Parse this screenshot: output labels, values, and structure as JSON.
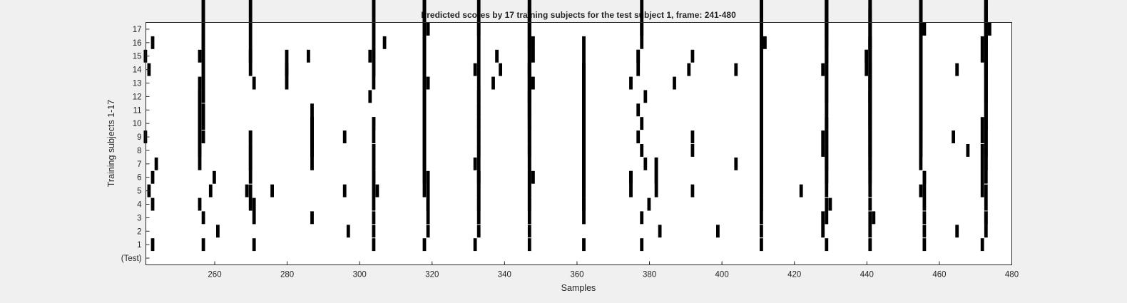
{
  "chart_data": {
    "type": "event raster",
    "title": "Predicted scores by 17 training subjects for the test subject 1, frame: 241-480",
    "xlabel": "Samples",
    "ylabel": "Training subjects 1-17",
    "xlim": [
      241,
      480
    ],
    "x_ticks": [
      "260",
      "280",
      "300",
      "320",
      "340",
      "360",
      "380",
      "400",
      "420",
      "440",
      "460",
      "480"
    ],
    "y_tick_labels": [
      "(Test)",
      "1",
      "2",
      "3",
      "4",
      "5",
      "6",
      "7",
      "8",
      "9",
      "10",
      "11",
      "12",
      "13",
      "14",
      "15",
      "16",
      "17"
    ],
    "marker_color": "#000000",
    "background": "#ffffff",
    "figure_background": "#f0f0f0",
    "grid": false,
    "rows": [
      {
        "label": "1",
        "events": [
          [
            243,
            1
          ],
          [
            257,
            1
          ],
          [
            271,
            1
          ],
          [
            304,
            1
          ],
          [
            318,
            1
          ],
          [
            332,
            1
          ],
          [
            347,
            1
          ],
          [
            362,
            1
          ],
          [
            378,
            1
          ],
          [
            411,
            1
          ],
          [
            429,
            1
          ],
          [
            441,
            1
          ],
          [
            456,
            1
          ],
          [
            472,
            1
          ]
        ]
      },
      {
        "label": "2",
        "events": [
          [
            261,
            1
          ],
          [
            297,
            1
          ],
          [
            304,
            1
          ],
          [
            319,
            1
          ],
          [
            333,
            1
          ],
          [
            347,
            1
          ],
          [
            383,
            1
          ],
          [
            399,
            1
          ],
          [
            411,
            1
          ],
          [
            428,
            2
          ],
          [
            441,
            2
          ],
          [
            456,
            1
          ],
          [
            465,
            1
          ],
          [
            473,
            2
          ]
        ]
      },
      {
        "label": "3",
        "events": [
          [
            257,
            1
          ],
          [
            271,
            2
          ],
          [
            287,
            1
          ],
          [
            304,
            1
          ],
          [
            319,
            2
          ],
          [
            333,
            2
          ],
          [
            347,
            2
          ],
          [
            362,
            2
          ],
          [
            378,
            1
          ],
          [
            411,
            2
          ],
          [
            429,
            2
          ],
          [
            442,
            1
          ],
          [
            456,
            1
          ],
          [
            473,
            1
          ]
        ]
      },
      {
        "label": "4",
        "events": [
          [
            243,
            1
          ],
          [
            256,
            1
          ],
          [
            270,
            2
          ],
          [
            304,
            3
          ],
          [
            319,
            3
          ],
          [
            333,
            3
          ],
          [
            347,
            3
          ],
          [
            362,
            3
          ],
          [
            380,
            1
          ],
          [
            411,
            3
          ],
          [
            430,
            1
          ],
          [
            441,
            1
          ],
          [
            456,
            3
          ],
          [
            473,
            2
          ]
        ]
      },
      {
        "label": "5",
        "events": [
          [
            242,
            1
          ],
          [
            259,
            1
          ],
          [
            269,
            1
          ],
          [
            276,
            1
          ],
          [
            296,
            1
          ],
          [
            305,
            1
          ],
          [
            318,
            4
          ],
          [
            333,
            4
          ],
          [
            347,
            4
          ],
          [
            362,
            4
          ],
          [
            375,
            2
          ],
          [
            382,
            3
          ],
          [
            392,
            1
          ],
          [
            411,
            4
          ],
          [
            422,
            1
          ],
          [
            429,
            4
          ],
          [
            441,
            4
          ],
          [
            455,
            1
          ],
          [
            472,
            4
          ]
        ]
      },
      {
        "label": "6",
        "events": [
          [
            243,
            1
          ],
          [
            260,
            1
          ],
          [
            270,
            4
          ],
          [
            304,
            3
          ],
          [
            318,
            5
          ],
          [
            333,
            1
          ],
          [
            348,
            1
          ],
          [
            362,
            5
          ],
          [
            375,
            1
          ],
          [
            382,
            2
          ],
          [
            411,
            5
          ],
          [
            429,
            5
          ],
          [
            441,
            5
          ],
          [
            456,
            1
          ],
          [
            473,
            5
          ]
        ]
      },
      {
        "label": "7",
        "events": [
          [
            244,
            1
          ],
          [
            256,
            6
          ],
          [
            270,
            2
          ],
          [
            287,
            3
          ],
          [
            304,
            2
          ],
          [
            318,
            5
          ],
          [
            332,
            1
          ],
          [
            347,
            6
          ],
          [
            362,
            6
          ],
          [
            379,
            1
          ],
          [
            404,
            1
          ],
          [
            411,
            6
          ],
          [
            429,
            6
          ],
          [
            441,
            6
          ],
          [
            455,
            6
          ],
          [
            473,
            6
          ]
        ]
      },
      {
        "label": "8",
        "events": [
          [
            256,
            6
          ],
          [
            287,
            4
          ],
          [
            318,
            7
          ],
          [
            333,
            2
          ],
          [
            347,
            7
          ],
          [
            362,
            7
          ],
          [
            378,
            1
          ],
          [
            392,
            1
          ],
          [
            411,
            7
          ],
          [
            428,
            2
          ],
          [
            441,
            7
          ],
          [
            455,
            7
          ],
          [
            468,
            1
          ],
          [
            473,
            7
          ]
        ]
      },
      {
        "label": "9",
        "events": [
          [
            241,
            1
          ],
          [
            257,
            1
          ],
          [
            270,
            1
          ],
          [
            287,
            2
          ],
          [
            296,
            1
          ],
          [
            304,
            2
          ],
          [
            318,
            8
          ],
          [
            333,
            3
          ],
          [
            347,
            8
          ],
          [
            362,
            8
          ],
          [
            377,
            1
          ],
          [
            392,
            1
          ],
          [
            411,
            8
          ],
          [
            429,
            1
          ],
          [
            441,
            8
          ],
          [
            455,
            8
          ],
          [
            464,
            1
          ],
          [
            472,
            2
          ]
        ]
      },
      {
        "label": "10",
        "events": [
          [
            257,
            2
          ],
          [
            287,
            1
          ],
          [
            304,
            1
          ],
          [
            318,
            9
          ],
          [
            333,
            1
          ],
          [
            347,
            9
          ],
          [
            362,
            1
          ],
          [
            378,
            1
          ],
          [
            411,
            9
          ],
          [
            429,
            1
          ],
          [
            441,
            9
          ],
          [
            455,
            9
          ],
          [
            473,
            9
          ]
        ]
      },
      {
        "label": "11",
        "events": [
          [
            318,
            10
          ],
          [
            333,
            10
          ],
          [
            347,
            10
          ],
          [
            377,
            1
          ],
          [
            411,
            10
          ],
          [
            429,
            10
          ],
          [
            441,
            10
          ],
          [
            455,
            10
          ],
          [
            473,
            10
          ]
        ]
      },
      {
        "label": "12",
        "events": [
          [
            257,
            11
          ],
          [
            303,
            1
          ],
          [
            318,
            11
          ],
          [
            333,
            1
          ],
          [
            347,
            11
          ],
          [
            379,
            1
          ],
          [
            411,
            11
          ],
          [
            429,
            11
          ],
          [
            441,
            1
          ],
          [
            455,
            11
          ],
          [
            473,
            11
          ]
        ]
      },
      {
        "label": "13",
        "events": [
          [
            257,
            12
          ],
          [
            271,
            1
          ],
          [
            280,
            2
          ],
          [
            304,
            12
          ],
          [
            319,
            1
          ],
          [
            337,
            1
          ],
          [
            348,
            1
          ],
          [
            362,
            2
          ],
          [
            375,
            1
          ],
          [
            387,
            1
          ],
          [
            411,
            12
          ],
          [
            429,
            12
          ],
          [
            441,
            12
          ],
          [
            455,
            12
          ],
          [
            473,
            12
          ]
        ]
      },
      {
        "label": "14",
        "events": [
          [
            242,
            1
          ],
          [
            257,
            13
          ],
          [
            270,
            2
          ],
          [
            280,
            2
          ],
          [
            304,
            13
          ],
          [
            318,
            13
          ],
          [
            332,
            1
          ],
          [
            339,
            1
          ],
          [
            347,
            1
          ],
          [
            377,
            2
          ],
          [
            391,
            1
          ],
          [
            404,
            1
          ],
          [
            411,
            13
          ],
          [
            428,
            1
          ],
          [
            440,
            2
          ],
          [
            455,
            13
          ],
          [
            465,
            1
          ],
          [
            473,
            13
          ]
        ]
      },
      {
        "label": "15",
        "events": [
          [
            241,
            1
          ],
          [
            256,
            1
          ],
          [
            270,
            14
          ],
          [
            286,
            1
          ],
          [
            303,
            1
          ],
          [
            318,
            1
          ],
          [
            338,
            1
          ],
          [
            348,
            2
          ],
          [
            377,
            1
          ],
          [
            392,
            1
          ],
          [
            411,
            14
          ],
          [
            429,
            14
          ],
          [
            440,
            1
          ],
          [
            455,
            14
          ],
          [
            472,
            2
          ]
        ]
      },
      {
        "label": "16",
        "events": [
          [
            243,
            1
          ],
          [
            257,
            1
          ],
          [
            307,
            1
          ],
          [
            347,
            15
          ],
          [
            378,
            15
          ],
          [
            412,
            1
          ],
          [
            429,
            15
          ],
          [
            441,
            1
          ],
          [
            473,
            15
          ]
        ]
      },
      {
        "label": "17",
        "events": [
          [
            319,
            1
          ],
          [
            333,
            1
          ],
          [
            347,
            1
          ],
          [
            378,
            1
          ],
          [
            411,
            1
          ],
          [
            429,
            1
          ],
          [
            456,
            1
          ],
          [
            474,
            1
          ]
        ]
      }
    ]
  }
}
